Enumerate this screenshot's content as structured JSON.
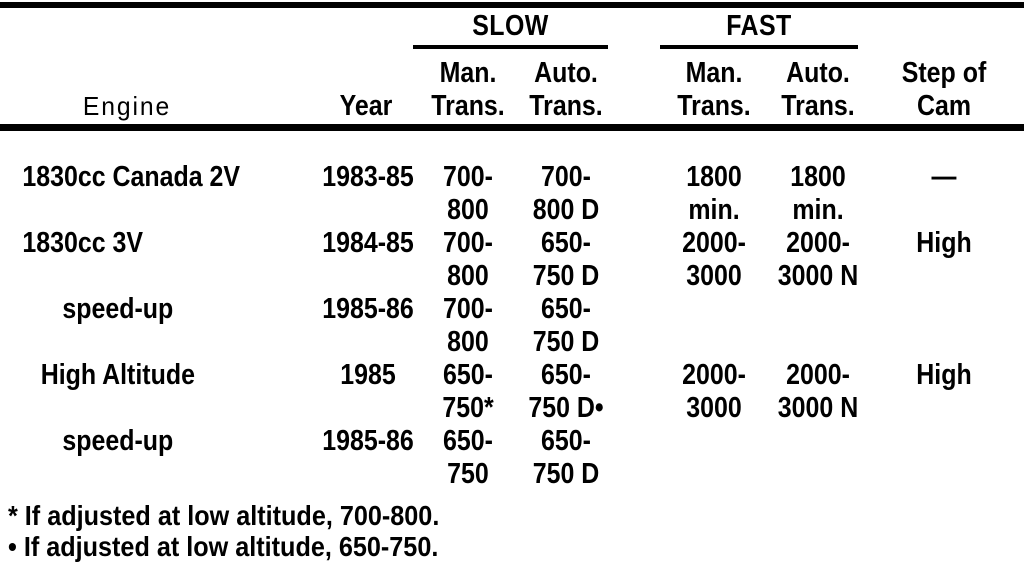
{
  "colors": {
    "ink": "#000000",
    "paper": "#ffffff"
  },
  "table": {
    "groups": {
      "slow": "SLOW",
      "fast": "FAST"
    },
    "header": {
      "engine": "Engine",
      "year": "Year",
      "slow_man": "Man.\nTrans.",
      "slow_auto": "Auto.\nTrans.",
      "fast_man": "Man.\nTrans.",
      "fast_auto": "Auto.\nTrans.",
      "cam": "Step of\nCam"
    },
    "rows": [
      {
        "engine": "1830cc Canada 2V",
        "year": "1983-85",
        "slow_man": "700-\n800",
        "slow_auto": "700-\n800 D",
        "fast_man": "1800\nmin.",
        "fast_auto": "1800\nmin.",
        "cam": "—"
      },
      {
        "engine": "1830cc 3V",
        "year": "1984-85",
        "slow_man": "700-\n800",
        "slow_auto": "650-\n750 D",
        "fast_man": "2000-\n3000",
        "fast_auto": "2000-\n3000 N",
        "cam": "High"
      },
      {
        "engine": "speed-up",
        "year": "1985-86",
        "slow_man": "700-\n800",
        "slow_auto": "650-\n750 D",
        "fast_man": "",
        "fast_auto": "",
        "cam": ""
      },
      {
        "engine": "High Altitude",
        "year": "1985",
        "slow_man": "650-\n750*",
        "slow_auto": "650-\n750 D•",
        "fast_man": "2000-\n3000",
        "fast_auto": "2000-\n3000 N",
        "cam": "High"
      },
      {
        "engine": "speed-up",
        "year": "1985-86",
        "slow_man": "650-\n750",
        "slow_auto": "650-\n750 D",
        "fast_man": "",
        "fast_auto": "",
        "cam": ""
      }
    ],
    "footnotes": [
      "* If adjusted at low altitude, 700-800.",
      "• If adjusted at low altitude, 650-750."
    ]
  }
}
